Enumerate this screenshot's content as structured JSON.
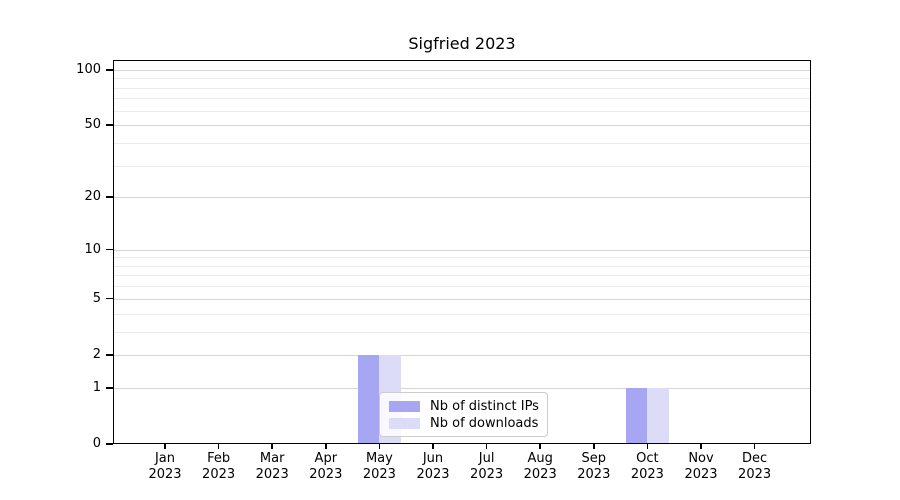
{
  "chart_data": {
    "type": "bar",
    "title": "Sigfried 2023",
    "categories": [
      "Jan",
      "Feb",
      "Mar",
      "Apr",
      "May",
      "Jun",
      "Jul",
      "Aug",
      "Sep",
      "Oct",
      "Nov",
      "Dec"
    ],
    "year_label": "2023",
    "series": [
      {
        "name": "Nb of distinct IPs",
        "color": "#a6a6f3",
        "values": [
          0,
          0,
          0,
          0,
          2,
          0,
          0,
          0,
          0,
          1,
          0,
          0
        ]
      },
      {
        "name": "Nb of downloads",
        "color": "#dcdcf8",
        "values": [
          0,
          0,
          0,
          0,
          2,
          0,
          0,
          0,
          0,
          1,
          0,
          0
        ]
      }
    ],
    "xlabel": "",
    "ylabel": "",
    "yscale": "log10(1+v)",
    "ylim": [
      0,
      113
    ],
    "yticks": [
      0,
      1,
      2,
      5,
      10,
      20,
      50,
      100
    ],
    "y_minor_gridlines": [
      3,
      4,
      6,
      7,
      8,
      9,
      30,
      40,
      60,
      70,
      80,
      90
    ],
    "grid": true,
    "legend_position": "lower-center-inside",
    "colors": {
      "major_grid": "#d5d5d5",
      "minor_grid": "#ebebeb",
      "axis": "#000000",
      "legend_border": "#cccccc"
    }
  }
}
